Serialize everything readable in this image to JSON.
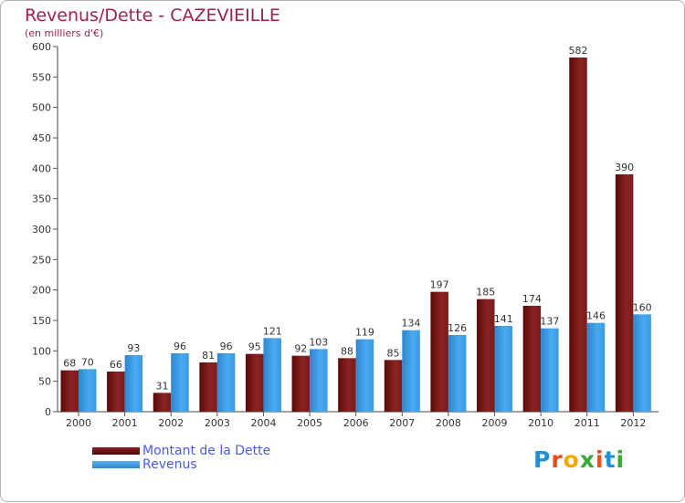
{
  "chart_data": {
    "type": "bar",
    "title": "Revenus/Dette - CAZEVIEILLE",
    "subtitle": "(en milliers d'€)",
    "categories": [
      "2000",
      "2001",
      "2002",
      "2003",
      "2004",
      "2005",
      "2006",
      "2007",
      "2008",
      "2009",
      "2010",
      "2011",
      "2012"
    ],
    "series": [
      {
        "name": "Montant de la Dette",
        "color": "#7a1818",
        "values": [
          68,
          66,
          31,
          81,
          95,
          92,
          88,
          85,
          197,
          185,
          174,
          582,
          390
        ]
      },
      {
        "name": "Revenus",
        "color": "#3a9be0",
        "values": [
          70,
          93,
          96,
          96,
          121,
          103,
          119,
          134,
          126,
          141,
          137,
          146,
          160
        ]
      }
    ],
    "ylim": [
      0,
      600
    ],
    "yticks": [
      0,
      50,
      100,
      150,
      200,
      250,
      300,
      350,
      400,
      450,
      500,
      550,
      600
    ],
    "grid": false,
    "legend_position": "bottom-left"
  },
  "logo": {
    "text": "Proxiti",
    "colors": [
      "#1f8fd6",
      "#e84e1b",
      "#f2a900",
      "#3aa935",
      "#e84e1b",
      "#1f8fd6",
      "#3aa935"
    ]
  }
}
